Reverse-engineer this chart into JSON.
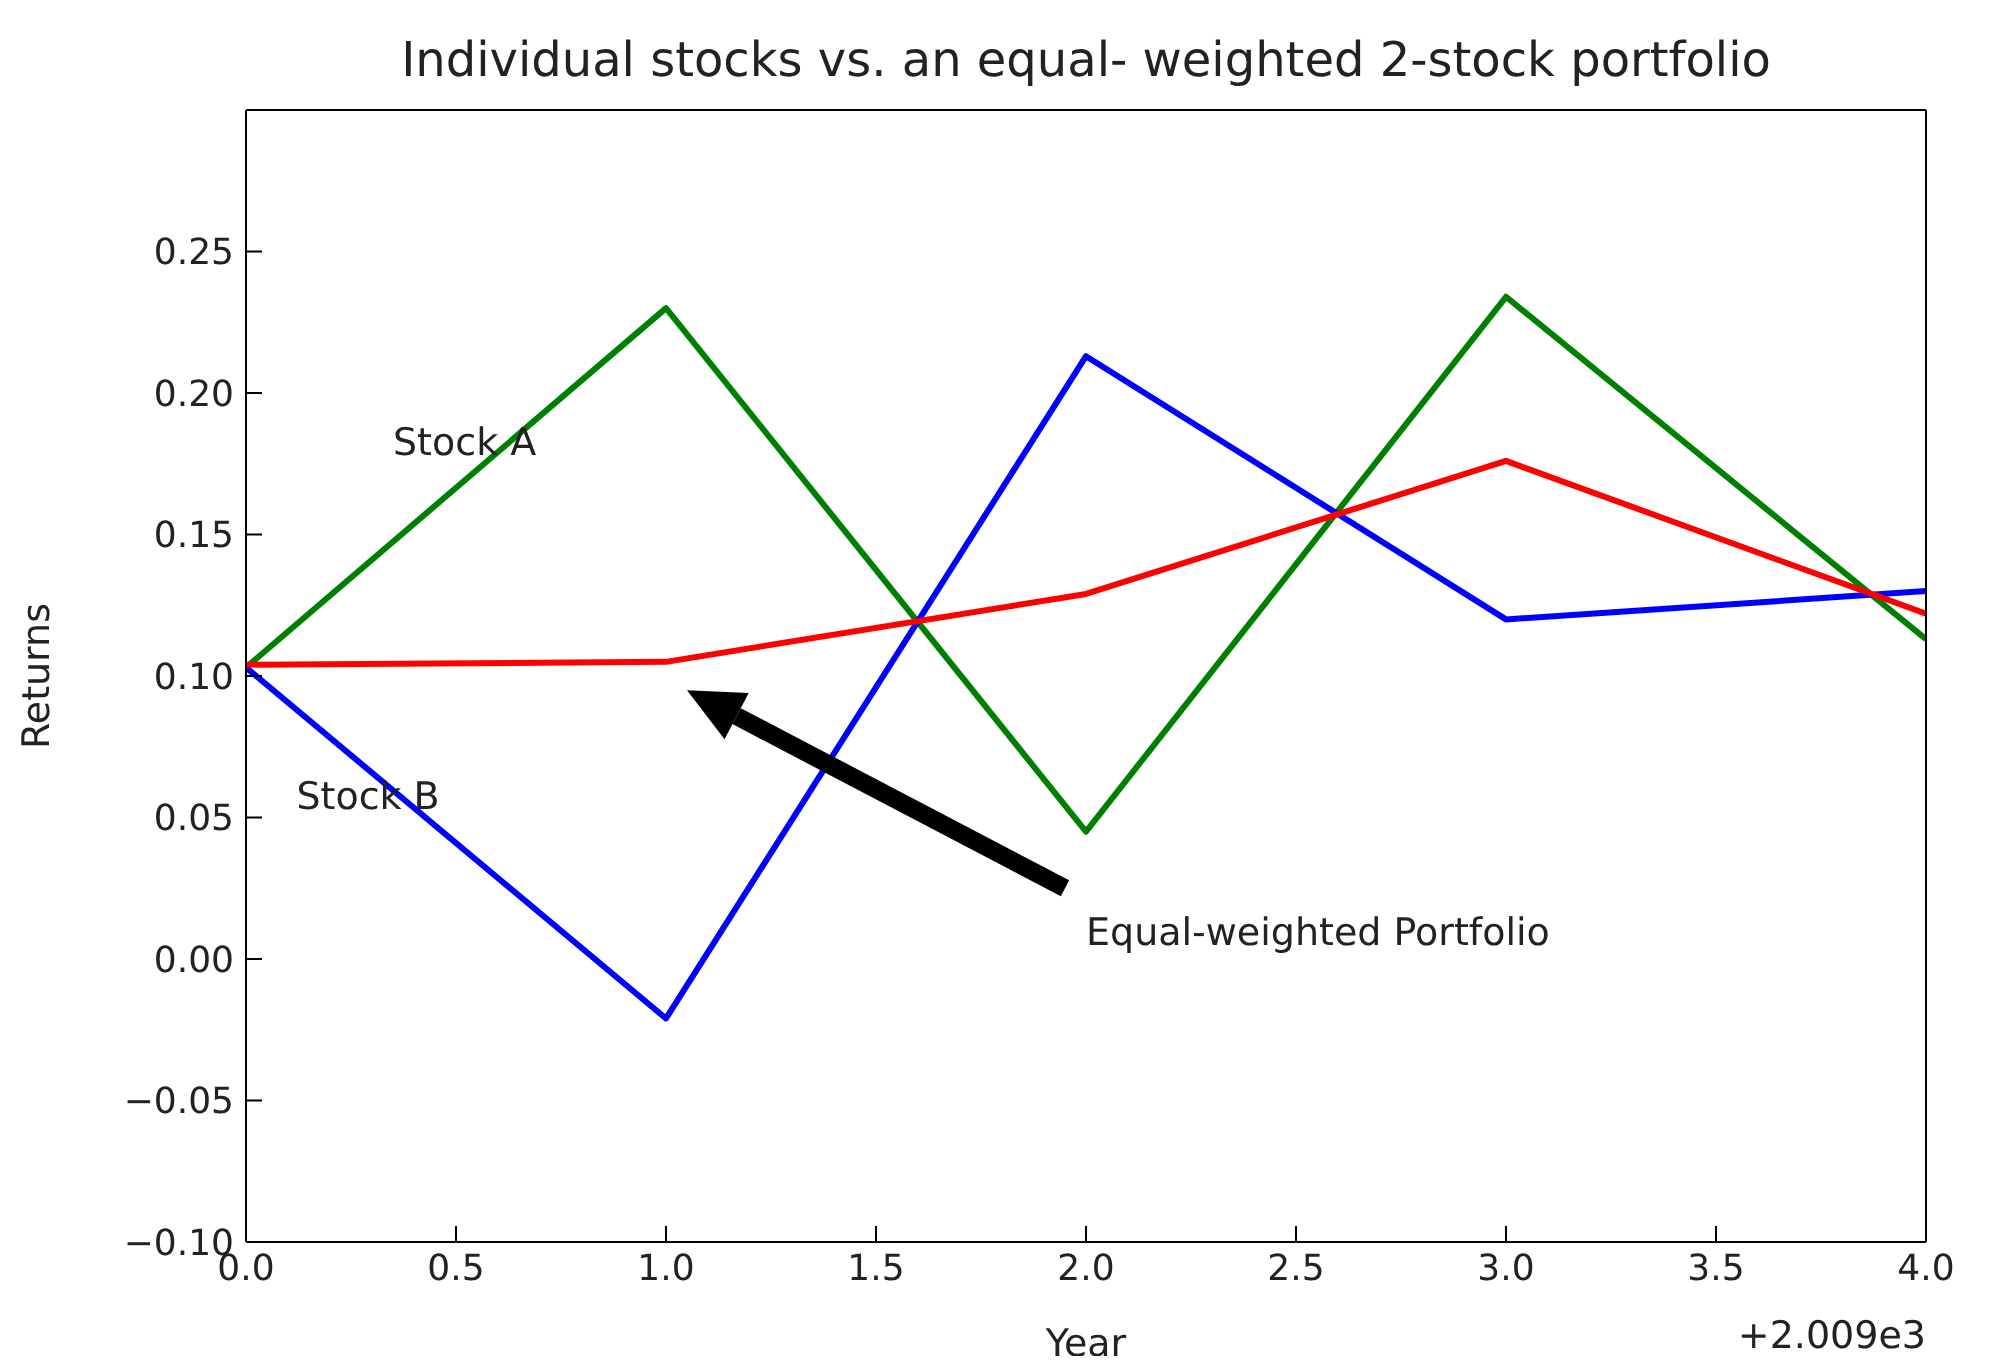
{
  "chart_data": {
    "type": "line",
    "title": "Individual stocks vs. an equal- weighted 2-stock portfolio",
    "xlabel": "Year",
    "ylabel": "Returns",
    "x": [
      0,
      1,
      2,
      3,
      4
    ],
    "series": [
      {
        "name": "Stock A",
        "color": "#008000",
        "values": [
          0.103,
          0.23,
          0.045,
          0.234,
          0.113
        ]
      },
      {
        "name": "Stock B",
        "color": "#0000ff",
        "values": [
          0.103,
          -0.021,
          0.213,
          0.12,
          0.13
        ]
      },
      {
        "color": "#ff0000",
        "values": [
          0.104,
          0.105,
          0.129,
          0.176,
          0.122
        ]
      }
    ],
    "annotations": [
      "+2.009e3",
      "Equal-weighted Portfolio"
    ],
    "xlim": [
      0,
      4
    ],
    "ylim": [
      -0.1,
      0.3
    ],
    "xticks": [
      {
        "value": 0,
        "label": "0.0"
      },
      {
        "value": 0.5,
        "label": "0.5"
      },
      {
        "value": 1,
        "label": "1.0"
      },
      {
        "value": 1.5,
        "label": "1.5"
      },
      {
        "value": 2,
        "label": "2.0"
      },
      {
        "value": 2.5,
        "label": "2.5"
      },
      {
        "value": 3,
        "label": "3.0"
      },
      {
        "value": 3.5,
        "label": "3.5"
      },
      {
        "value": 4,
        "label": "4.0"
      }
    ],
    "yticks": [
      {
        "value": -0.1,
        "label": "−0.10"
      },
      {
        "value": -0.05,
        "label": "−0.05"
      },
      {
        "value": 0,
        "label": "0.00"
      },
      {
        "value": 0.05,
        "label": "0.05"
      },
      {
        "value": 0.1,
        "label": "0.10"
      },
      {
        "value": 0.15,
        "label": "0.15"
      },
      {
        "value": 0.2,
        "label": "0.20"
      },
      {
        "value": 0.25,
        "label": "0.25"
      }
    ],
    "grid": false,
    "legend": false,
    "marker": "none",
    "line_style": "solid"
  }
}
